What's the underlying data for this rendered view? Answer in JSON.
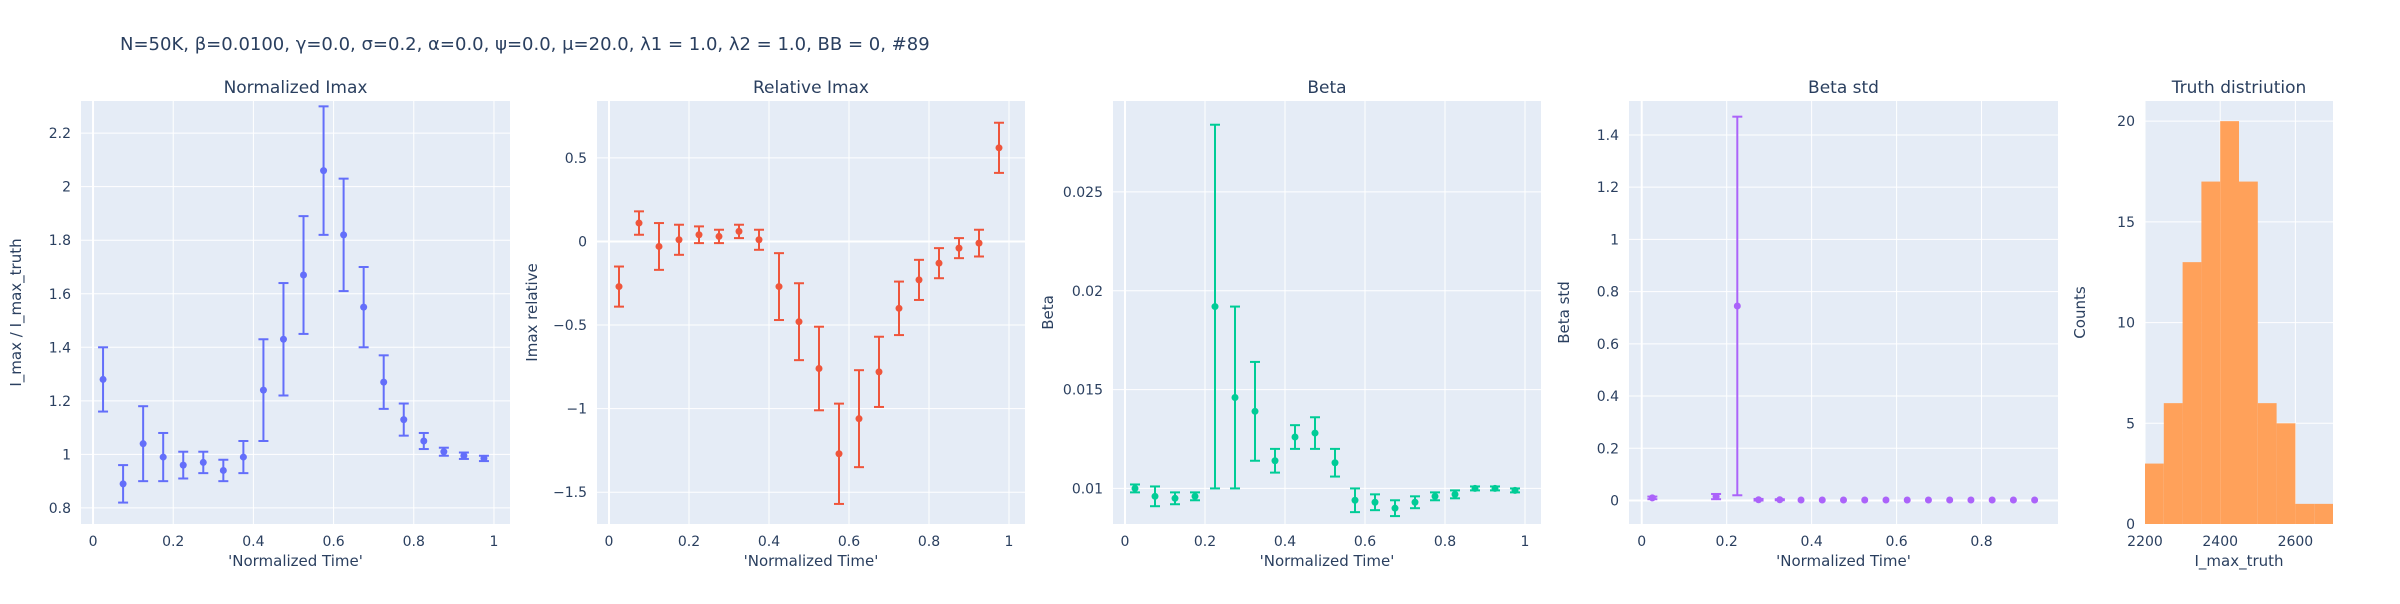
{
  "figure_title": "N=50K, β=0.0100, γ=0.0, σ=0.2,  α=0.0, ψ=0.0, μ=20.0, λ1 = 1.0, λ2 = 1.0, BB = 0, #89",
  "colors": {
    "plot_bg": "#E5ECF6",
    "grid": "#FFFFFF",
    "text": "#2a3f5f",
    "series_imax": "#636EFA",
    "series_relative": "#EF553B",
    "series_beta": "#00CC96",
    "series_beta_std": "#AB63FA",
    "series_hist": "#FFA15A"
  },
  "chart_data": [
    {
      "type": "scatter",
      "title": "Normalized Imax",
      "xlabel": "'Normalized Time'",
      "ylabel": "I_max / I_max_truth",
      "xlim": [
        -0.03,
        1.04
      ],
      "ylim": [
        0.74,
        2.32
      ],
      "xticks": [
        0,
        0.2,
        0.4,
        0.6,
        0.8,
        1
      ],
      "xtick_labels": [
        "0",
        "0.2",
        "0.4",
        "0.6",
        "0.8",
        "1"
      ],
      "yticks": [
        0.8,
        1,
        1.2,
        1.4,
        1.6,
        1.8,
        2,
        2.2
      ],
      "ytick_labels": [
        "0.8",
        "1",
        "1.2",
        "1.4",
        "1.6",
        "1.8",
        "2",
        "2.2"
      ],
      "color": "#636EFA",
      "x": [
        0.025,
        0.075,
        0.125,
        0.175,
        0.225,
        0.275,
        0.325,
        0.375,
        0.425,
        0.475,
        0.525,
        0.575,
        0.625,
        0.675,
        0.725,
        0.775,
        0.825,
        0.875,
        0.925,
        0.975
      ],
      "y": [
        1.28,
        0.89,
        1.04,
        0.99,
        0.96,
        0.97,
        0.94,
        0.99,
        1.24,
        1.43,
        1.67,
        2.06,
        1.82,
        1.55,
        1.27,
        1.13,
        1.05,
        1.01,
        0.995,
        0.985
      ],
      "err": [
        0.12,
        0.07,
        0.14,
        0.09,
        0.05,
        0.04,
        0.04,
        0.06,
        0.19,
        0.21,
        0.22,
        0.24,
        0.21,
        0.15,
        0.1,
        0.06,
        0.03,
        0.015,
        0.012,
        0.01
      ]
    },
    {
      "type": "scatter",
      "title": "Relative Imax",
      "xlabel": "'Normalized Time'",
      "ylabel": "Imax relative",
      "xlim": [
        -0.03,
        1.04
      ],
      "ylim": [
        -1.69,
        0.84
      ],
      "xticks": [
        0,
        0.2,
        0.4,
        0.6,
        0.8,
        1
      ],
      "xtick_labels": [
        "0",
        "0.2",
        "0.4",
        "0.6",
        "0.8",
        "1"
      ],
      "yticks": [
        -1.5,
        -1,
        -0.5,
        0,
        0.5
      ],
      "ytick_labels": [
        "−1.5",
        "−1",
        "−0.5",
        "0",
        "0.5"
      ],
      "color": "#EF553B",
      "x": [
        0.025,
        0.075,
        0.125,
        0.175,
        0.225,
        0.275,
        0.325,
        0.375,
        0.425,
        0.475,
        0.525,
        0.575,
        0.625,
        0.675,
        0.725,
        0.775,
        0.825,
        0.875,
        0.925,
        0.975
      ],
      "y": [
        -0.27,
        0.11,
        -0.03,
        0.01,
        0.04,
        0.03,
        0.06,
        0.01,
        -0.27,
        -0.48,
        -0.76,
        -1.27,
        -1.06,
        -0.78,
        -0.4,
        -0.23,
        -0.13,
        -0.04,
        -0.01,
        0.56
      ],
      "err": [
        0.12,
        0.07,
        0.14,
        0.09,
        0.05,
        0.04,
        0.04,
        0.06,
        0.2,
        0.23,
        0.25,
        0.3,
        0.29,
        0.21,
        0.16,
        0.12,
        0.09,
        0.06,
        0.08,
        0.15
      ]
    },
    {
      "type": "scatter",
      "title": "Beta",
      "xlabel": "'Normalized Time'",
      "ylabel": "Beta",
      "xlim": [
        -0.03,
        1.04
      ],
      "ylim": [
        0.0082,
        0.0296
      ],
      "xticks": [
        0,
        0.2,
        0.4,
        0.6,
        0.8,
        1
      ],
      "xtick_labels": [
        "0",
        "0.2",
        "0.4",
        "0.6",
        "0.8",
        "1"
      ],
      "yticks": [
        0.01,
        0.015,
        0.02,
        0.025
      ],
      "ytick_labels": [
        "0.01",
        "0.015",
        "0.02",
        "0.025"
      ],
      "color": "#00CC96",
      "x": [
        0.025,
        0.075,
        0.125,
        0.175,
        0.225,
        0.275,
        0.325,
        0.375,
        0.425,
        0.475,
        0.525,
        0.575,
        0.625,
        0.675,
        0.725,
        0.775,
        0.825,
        0.875,
        0.925,
        0.975
      ],
      "y": [
        0.01,
        0.0096,
        0.0095,
        0.0096,
        0.0192,
        0.0146,
        0.0139,
        0.0114,
        0.0126,
        0.0128,
        0.0113,
        0.0094,
        0.0093,
        0.009,
        0.0093,
        0.0096,
        0.0097,
        0.01,
        0.01,
        0.0099
      ],
      "err": [
        0.0002,
        0.0005,
        0.0003,
        0.0002,
        0.0092,
        0.0046,
        0.0025,
        0.0006,
        0.0006,
        0.0008,
        0.0007,
        0.0006,
        0.0004,
        0.0004,
        0.0003,
        0.0002,
        0.0002,
        0.0001,
        0.0001,
        0.0001
      ]
    },
    {
      "type": "scatter",
      "title": "Beta std",
      "xlabel": "'Normalized Time'",
      "ylabel": "Beta std",
      "xlim": [
        -0.03,
        0.98
      ],
      "ylim": [
        -0.09,
        1.53
      ],
      "xticks": [
        0,
        0.2,
        0.4,
        0.6,
        0.8
      ],
      "xtick_labels": [
        "0",
        "0.2",
        "0.4",
        "0.6",
        "0.8"
      ],
      "yticks": [
        0,
        0.2,
        0.4,
        0.6,
        0.8,
        1,
        1.2,
        1.4
      ],
      "ytick_labels": [
        "0",
        "0.2",
        "0.4",
        "0.6",
        "0.8",
        "1",
        "1.2",
        "1.4"
      ],
      "color": "#AB63FA",
      "x": [
        0.025,
        0.175,
        0.225,
        0.275,
        0.325,
        0.375,
        0.425,
        0.475,
        0.525,
        0.575,
        0.625,
        0.675,
        0.725,
        0.775,
        0.825,
        0.875,
        0.925
      ],
      "y": [
        0.01,
        0.015,
        0.745,
        0.003,
        0.003,
        0.002,
        0.002,
        0.002,
        0.002,
        0.002,
        0.002,
        0.002,
        0.002,
        0.002,
        0.002,
        0.002,
        0.002
      ],
      "err": [
        0.005,
        0.01,
        0.725,
        0.003,
        0.002,
        0,
        0,
        0,
        0,
        0,
        0,
        0,
        0,
        0,
        0,
        0,
        0
      ]
    },
    {
      "type": "bar",
      "subtype": "histogram",
      "title": "Truth distriution",
      "xlabel": "I_max_truth",
      "ylabel": "Counts",
      "xlim": [
        2200,
        2700
      ],
      "ylim": [
        0,
        21
      ],
      "xticks": [
        2200,
        2400,
        2600
      ],
      "xtick_labels": [
        "2200",
        "2400",
        "2600"
      ],
      "yticks": [
        0,
        5,
        10,
        15,
        20
      ],
      "ytick_labels": [
        "0",
        "5",
        "10",
        "15",
        "20"
      ],
      "color": "#FFA15A",
      "bin_edges": [
        2200,
        2250,
        2300,
        2350,
        2400,
        2450,
        2500,
        2550,
        2600,
        2650,
        2700
      ],
      "values": [
        3,
        6,
        13,
        17,
        20,
        17,
        6,
        5,
        1,
        1
      ]
    }
  ]
}
